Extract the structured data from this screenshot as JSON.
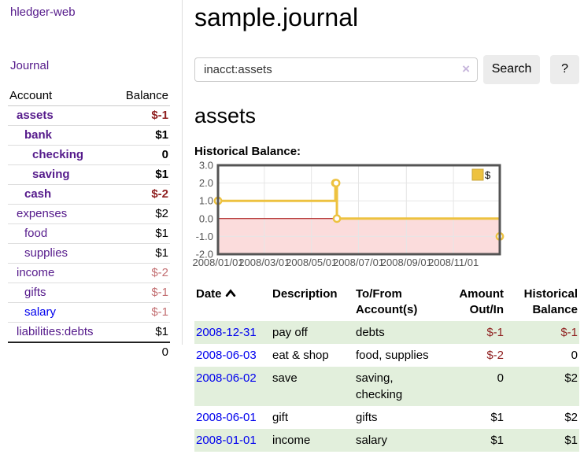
{
  "brand": "hledger-web",
  "nav": {
    "journal": "Journal"
  },
  "sidebar": {
    "header": {
      "account": "Account",
      "balance": "Balance"
    },
    "accounts": [
      {
        "name": "assets",
        "balance": "$-1"
      },
      {
        "name": "bank",
        "balance": "$1"
      },
      {
        "name": "checking",
        "balance": "0"
      },
      {
        "name": "saving",
        "balance": "$1"
      },
      {
        "name": "cash",
        "balance": "$-2"
      },
      {
        "name": "expenses",
        "balance": "$2"
      },
      {
        "name": "food",
        "balance": "$1"
      },
      {
        "name": "supplies",
        "balance": "$1"
      },
      {
        "name": "income",
        "balance": "$-2"
      },
      {
        "name": "gifts",
        "balance": "$-1"
      },
      {
        "name": "salary",
        "balance": "$-1"
      },
      {
        "name": "liabilities:debts",
        "balance": "$1"
      }
    ],
    "total": "0"
  },
  "header": {
    "title": "sample.journal"
  },
  "search": {
    "value": "inacct:assets",
    "clear_icon": "×",
    "button_label": "Search",
    "help_label": "?"
  },
  "register": {
    "account_heading": "assets",
    "chart_title": "Historical Balance:"
  },
  "chart_data": {
    "type": "line",
    "style": "step",
    "title": "Historical Balance",
    "series": [
      {
        "name": "$",
        "points": [
          [
            "2008-01-01",
            1
          ],
          [
            "2008-06-01",
            2
          ],
          [
            "2008-06-02",
            2
          ],
          [
            "2008-06-03",
            0
          ],
          [
            "2008-12-31",
            -1
          ]
        ]
      }
    ],
    "x_range": [
      "2008-01-01",
      "2008-12-31"
    ],
    "ylim": [
      -2,
      3
    ],
    "y_ticks": [
      3.0,
      2.0,
      1.0,
      0.0,
      -1.0,
      -2.0
    ],
    "x_ticks": [
      "2008/01/01",
      "2008/03/01",
      "2008/05/01",
      "2008/07/01",
      "2008/09/01",
      "2008/11/01"
    ],
    "legend": "$",
    "legend_position": "ne",
    "line_color": "#EDC240",
    "marker_fill": "#ffffff",
    "negative_fill": "#fbdcdc",
    "zero_line_color": "#a40000",
    "grid_color": "#e6e6e6",
    "border_color": "#545454",
    "tick_label_color": "#545454"
  },
  "table": {
    "headers": {
      "date": "Date",
      "description": "Description",
      "accounts": "To/From Account(s)",
      "amount": "Amount Out/In",
      "balance": "Historical Balance"
    },
    "rows": [
      {
        "date": "2008-12-31",
        "description": "pay off",
        "accounts": "debts",
        "amount": "$-1",
        "balance": "$-1"
      },
      {
        "date": "2008-06-03",
        "description": "eat & shop",
        "accounts": "food, supplies",
        "amount": "$-2",
        "balance": "0"
      },
      {
        "date": "2008-06-02",
        "description": "save",
        "accounts": "saving, checking",
        "amount": "0",
        "balance": "$2"
      },
      {
        "date": "2008-06-01",
        "description": "gift",
        "accounts": "gifts",
        "amount": "$1",
        "balance": "$2"
      },
      {
        "date": "2008-01-01",
        "description": "income",
        "accounts": "salary",
        "amount": "$1",
        "balance": "$1"
      }
    ]
  }
}
